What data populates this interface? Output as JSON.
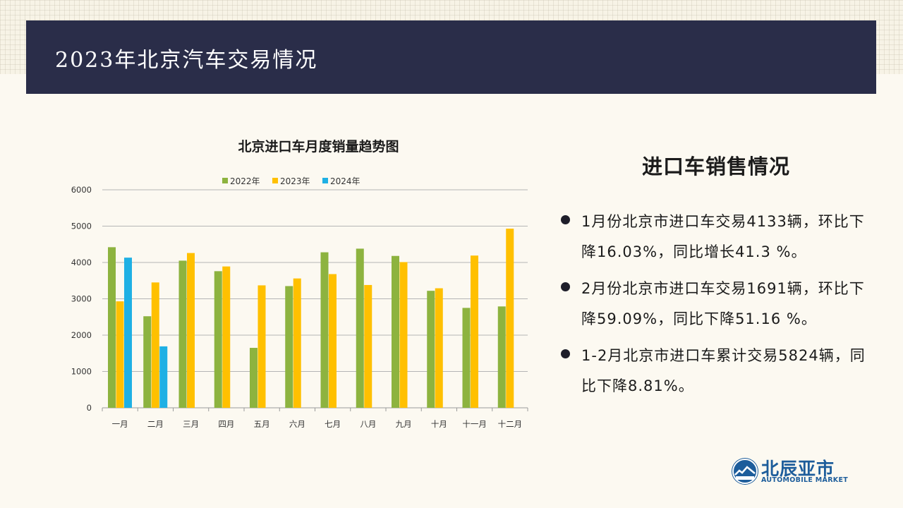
{
  "page": {
    "title": "2023年北京汽车交易情况"
  },
  "side_panel": {
    "title": "进口车销售情况",
    "bullets": [
      "1月份北京市进口车交易4133辆，环比下降16.03%，同比增长41.3 %。",
      "2月份北京市进口车交易1691辆，环比下降59.09%，同比下降51.16 %。",
      "1-2月北京市进口车累计交易5824辆，同比下降8.81%。"
    ]
  },
  "logo": {
    "name_cn": "北辰亚市",
    "name_en": "AUTOMOBILE MARKET"
  },
  "chart_data": {
    "type": "bar",
    "title": "北京进口车月度销量趋势图",
    "categories": [
      "一月",
      "二月",
      "三月",
      "四月",
      "五月",
      "六月",
      "七月",
      "八月",
      "九月",
      "十月",
      "十一月",
      "十二月"
    ],
    "series": [
      {
        "name": "2022年",
        "color": "#8db33f",
        "values": [
          4420,
          2520,
          4050,
          3760,
          1650,
          3350,
          4280,
          4380,
          4180,
          3220,
          2750,
          2790
        ]
      },
      {
        "name": "2023年",
        "color": "#ffc000",
        "values": [
          2930,
          3450,
          4260,
          3890,
          3370,
          3560,
          3680,
          3380,
          4010,
          3290,
          4190,
          4930
        ]
      },
      {
        "name": "2024年",
        "color": "#1fb0e4",
        "values": [
          4133,
          1691,
          null,
          null,
          null,
          null,
          null,
          null,
          null,
          null,
          null,
          null
        ]
      }
    ],
    "ylim": [
      0,
      6000
    ],
    "yticks": [
      0,
      1000,
      2000,
      3000,
      4000,
      5000,
      6000
    ],
    "grid": true,
    "legend": "top-center"
  }
}
